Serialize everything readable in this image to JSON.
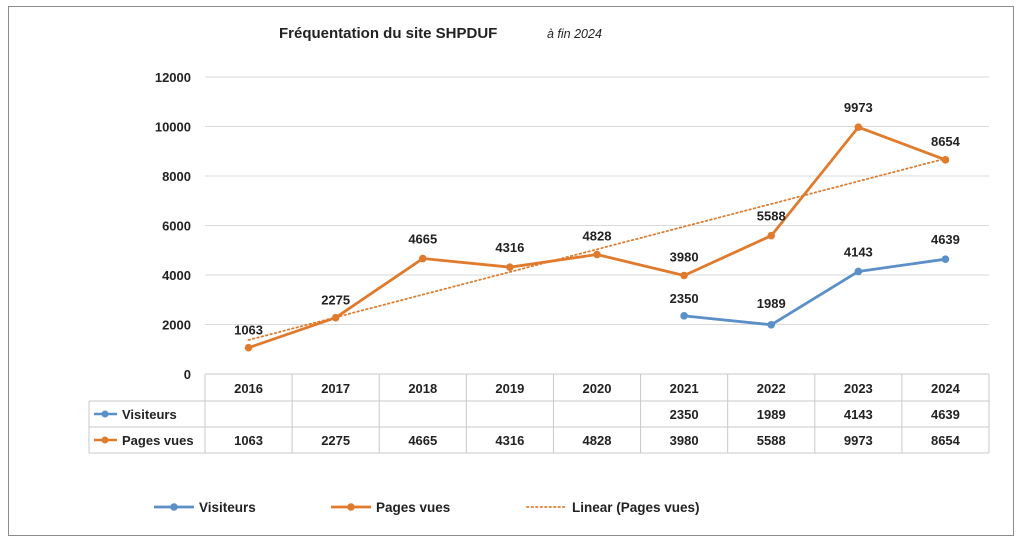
{
  "chart_data": {
    "type": "line",
    "title": "Fréquentation du site SHPDUF",
    "subtitle": "à fin 2024",
    "categories": [
      "2016",
      "2017",
      "2018",
      "2019",
      "2020",
      "2021",
      "2022",
      "2023",
      "2024"
    ],
    "ylim": [
      0,
      12000
    ],
    "yticks": [
      0,
      2000,
      4000,
      6000,
      8000,
      10000,
      12000
    ],
    "grid": true,
    "legend_position": "bottom",
    "data_table": true,
    "series": [
      {
        "name": "Visiteurs",
        "color": "#5b8fc7",
        "values": [
          null,
          null,
          null,
          null,
          null,
          2350,
          1989,
          4143,
          4639
        ]
      },
      {
        "name": "Pages vues",
        "color": "#e07b2e",
        "values": [
          1063,
          2275,
          4665,
          4316,
          4828,
          3980,
          5588,
          9973,
          8654
        ]
      }
    ],
    "trendline": {
      "name": "Linear (Pages vues)",
      "type": "linear",
      "of_series": "Pages vues",
      "style": "dotted",
      "color": "#e07b2e"
    }
  }
}
